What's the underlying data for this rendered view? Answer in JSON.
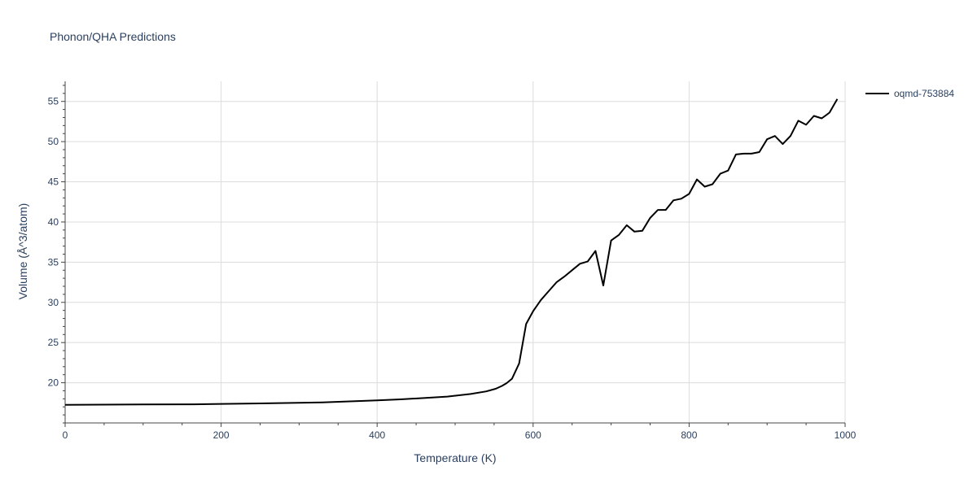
{
  "chart_data": {
    "type": "line",
    "title": "Phonon/QHA Predictions",
    "xlabel": "Temperature (K)",
    "ylabel": "Volume (Å^3/atom)",
    "xlim": [
      0,
      1000
    ],
    "ylim": [
      15,
      57.5
    ],
    "x_ticks": [
      0,
      200,
      400,
      600,
      800,
      1000
    ],
    "y_ticks": [
      20,
      25,
      30,
      35,
      40,
      45,
      50,
      55
    ],
    "grid": true,
    "legend": "right",
    "series": [
      {
        "name": "oqmd-753884",
        "color": "#000000",
        "x": [
          0,
          50,
          100,
          165,
          200,
          250,
          330,
          400,
          430,
          460,
          490,
          520,
          540,
          552,
          560,
          566,
          573,
          582,
          591,
          600,
          610,
          620,
          630,
          640,
          650,
          660,
          670,
          680,
          690,
          700,
          710,
          720,
          730,
          740,
          750,
          760,
          770,
          780,
          790,
          800,
          810,
          820,
          830,
          840,
          850,
          860,
          870,
          880,
          890,
          900,
          910,
          920,
          930,
          940,
          950,
          960,
          970,
          980,
          990
        ],
        "y": [
          17.25,
          17.28,
          17.3,
          17.32,
          17.37,
          17.43,
          17.55,
          17.8,
          17.93,
          18.1,
          18.28,
          18.6,
          18.93,
          19.25,
          19.6,
          19.95,
          20.5,
          22.4,
          27.3,
          28.9,
          30.3,
          31.4,
          32.5,
          33.2,
          34.0,
          34.8,
          35.1,
          36.4,
          32.1,
          37.7,
          38.4,
          39.6,
          38.8,
          38.9,
          40.5,
          41.5,
          41.5,
          42.7,
          42.9,
          43.5,
          45.3,
          44.4,
          44.7,
          46.0,
          46.4,
          48.4,
          48.5,
          48.5,
          48.7,
          50.3,
          50.7,
          49.7,
          50.7,
          52.6,
          52.1,
          53.2,
          52.9,
          53.6,
          55.3
        ]
      }
    ]
  }
}
